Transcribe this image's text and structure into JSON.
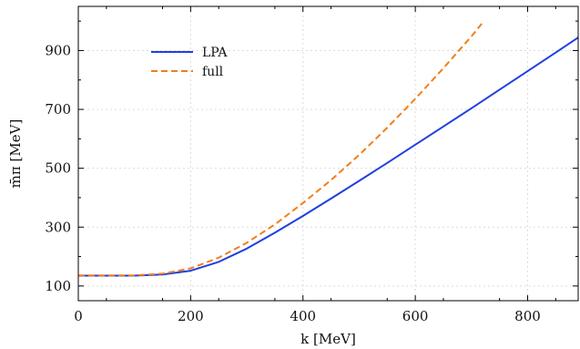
{
  "chart_data": {
    "type": "line",
    "xlabel": "k [MeV]",
    "ylabel": "m̄π [MeV]",
    "xlim": [
      0,
      890
    ],
    "ylim": [
      50,
      1050
    ],
    "x_ticks": [
      "0",
      "200",
      "400",
      "600",
      "800"
    ],
    "y_ticks": [
      "100",
      "300",
      "500",
      "700",
      "900"
    ],
    "grid": true,
    "legend_position": "top-left",
    "series": [
      {
        "name": "LPA",
        "color": "#1f3fe0",
        "style": "solid",
        "x": [
          0,
          50,
          100,
          150,
          200,
          250,
          300,
          350,
          400,
          450,
          500,
          550,
          600,
          650,
          700,
          750,
          800,
          850,
          890
        ],
        "y": [
          135,
          135,
          135,
          139,
          152,
          182,
          227,
          281,
          338,
          397,
          457,
          518,
          580,
          642,
          704,
          767,
          830,
          893,
          944
        ]
      },
      {
        "name": "full",
        "color": "#f07f1a",
        "style": "dashed",
        "x": [
          0,
          50,
          100,
          150,
          200,
          250,
          300,
          350,
          400,
          450,
          500,
          550,
          600,
          650,
          700,
          720
        ],
        "y": [
          136,
          136,
          136,
          142,
          160,
          196,
          247,
          309,
          382,
          460,
          545,
          638,
          736,
          840,
          948,
          995
        ]
      }
    ]
  }
}
